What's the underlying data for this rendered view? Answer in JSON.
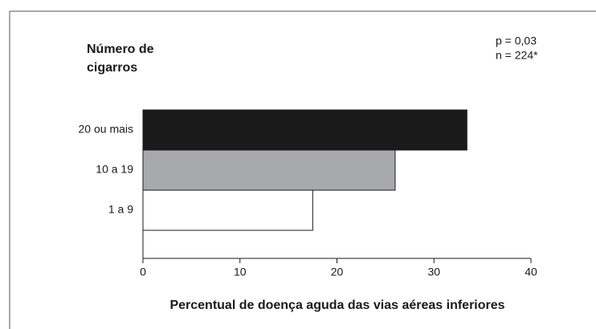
{
  "chart_data": {
    "type": "hbar",
    "ylabel": [
      "Número de",
      "cigarros"
    ],
    "xlabel": "Percentual de doença aguda das vias aéreas inferiores",
    "annotations": [
      "p = 0,03",
      "n = 224*"
    ],
    "categories": [
      "20 ou mais",
      "10 a 19",
      "1 a 9"
    ],
    "values": [
      33.4,
      26,
      17.5
    ],
    "colors": [
      "#1a1a1a",
      "#a7a9ac",
      "#ffffff"
    ],
    "xlim": [
      0,
      40
    ],
    "xticks": [
      0,
      10,
      20,
      30,
      40
    ],
    "grid": false
  }
}
